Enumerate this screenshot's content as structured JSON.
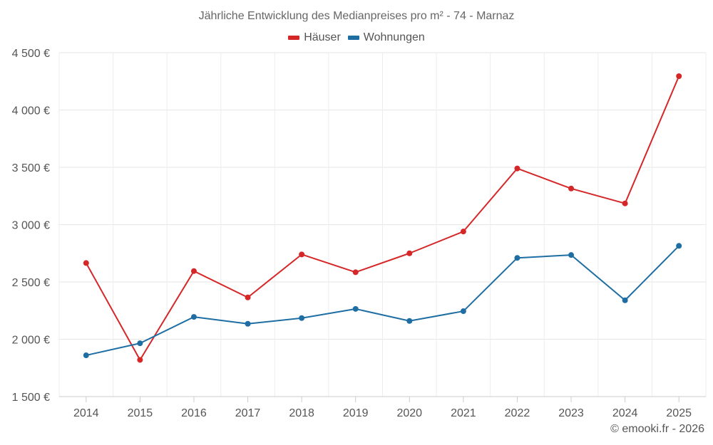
{
  "chart_data": {
    "type": "line",
    "title": "Jährliche Entwicklung des Medianpreises pro m² - 74 - Marnaz",
    "xlabel": "",
    "ylabel": "",
    "categories": [
      "2014",
      "2015",
      "2016",
      "2017",
      "2018",
      "2019",
      "2020",
      "2021",
      "2022",
      "2023",
      "2024",
      "2025"
    ],
    "ylim": [
      1500,
      4500
    ],
    "yticks": [
      1500,
      2000,
      2500,
      3000,
      3500,
      4000,
      4500
    ],
    "ytick_labels": [
      "1 500 €",
      "2 000 €",
      "2 500 €",
      "3 000 €",
      "3 500 €",
      "4 000 €",
      "4 500 €"
    ],
    "grid": true,
    "legend_position": "top-center",
    "series": [
      {
        "name": "Häuser",
        "color": "#d62728",
        "values": [
          2665,
          1820,
          2595,
          2365,
          2740,
          2585,
          2750,
          2940,
          3490,
          3315,
          3185,
          4295
        ]
      },
      {
        "name": "Wohnungen",
        "color": "#1f6ea3",
        "values": [
          1860,
          1965,
          2195,
          2135,
          2185,
          2265,
          2160,
          2245,
          2710,
          2735,
          2340,
          2815
        ]
      }
    ]
  },
  "credit": "© emooki.fr - 2026"
}
